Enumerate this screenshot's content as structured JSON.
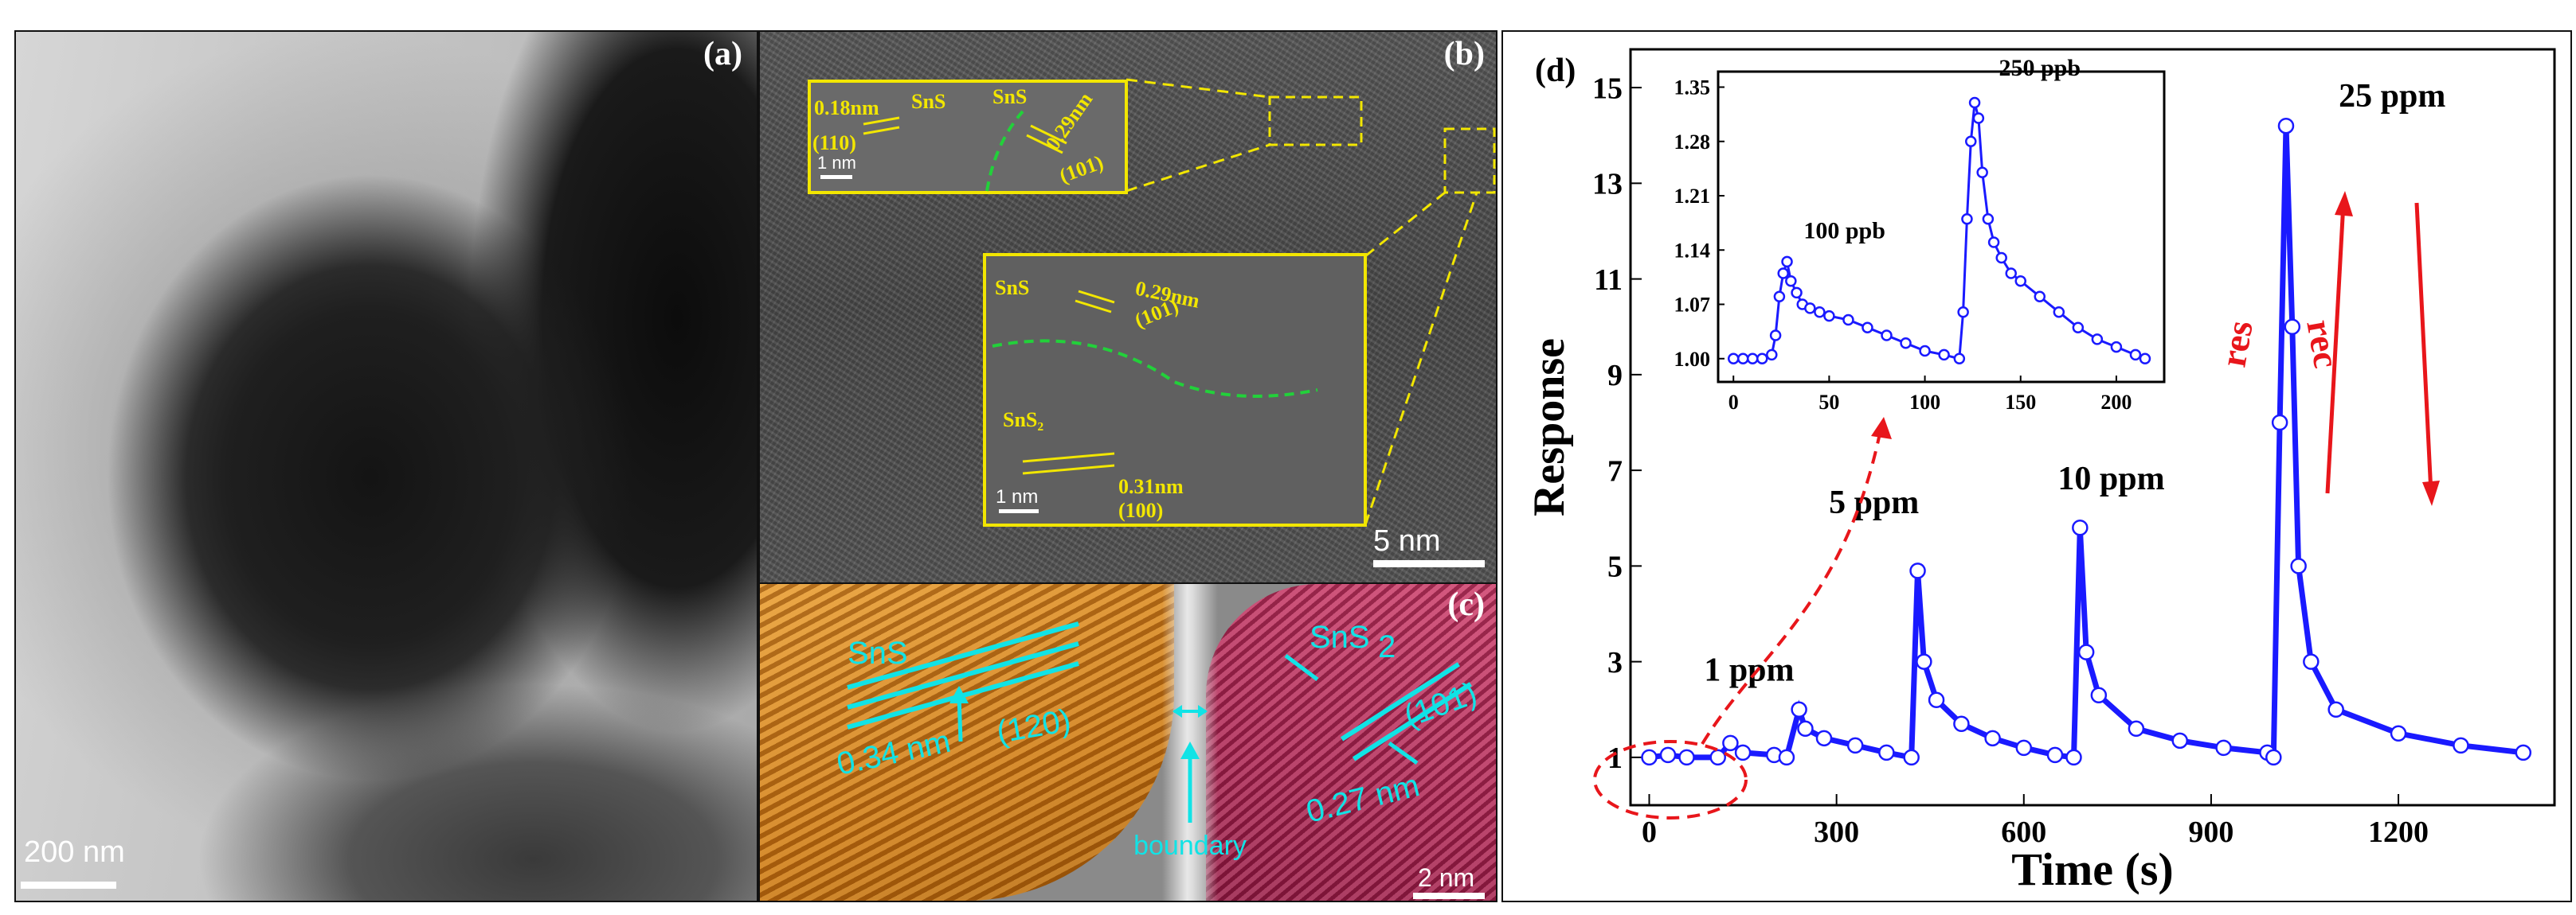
{
  "panel_a": {
    "label": "(a)",
    "scale": "200 nm"
  },
  "panel_b": {
    "label": "(b)",
    "scale": "5 nm",
    "inset1": {
      "d1": "0.18nm",
      "phase1": "SnS",
      "phase2": "SnS",
      "plane1": "(110)",
      "d2": "0.29nm",
      "plane2": "(101)",
      "scale": "1 nm"
    },
    "inset2": {
      "phase1": "SnS",
      "d1": "0.29nm",
      "plane1": "(101)",
      "phase2": "SnS₂",
      "d2": "0.31nm",
      "plane2": "(100)",
      "scale": "1 nm"
    }
  },
  "panel_c": {
    "label": "(c)",
    "scale": "2 nm",
    "left_phase": "SnS",
    "left_plane": "(120)",
    "left_d": "0.34 nm",
    "right_phase": "SnS",
    "right_sub": "2",
    "right_plane": "(101)",
    "right_d": "0.27 nm",
    "boundary": "boundary"
  },
  "colors": {
    "inset_yellow": "#f2e600",
    "cyan": "#11e3e6",
    "series_blue": "#1a1aff",
    "annot_red": "#e8161b"
  },
  "chart_data": [
    {
      "type": "line",
      "panel": "(d)",
      "xlabel": "Time (s)",
      "ylabel": "Response",
      "xlim": [
        -30,
        1450
      ],
      "ylim": [
        0,
        15.8
      ],
      "xticks": [
        0,
        300,
        600,
        900,
        1200
      ],
      "yticks": [
        1,
        3,
        5,
        7,
        9,
        11,
        13,
        15
      ],
      "series": [
        {
          "name": "response",
          "x": [
            0,
            30,
            60,
            110,
            130,
            150,
            200,
            220,
            240,
            250,
            280,
            330,
            380,
            420,
            430,
            440,
            460,
            500,
            550,
            600,
            650,
            680,
            690,
            700,
            720,
            780,
            850,
            920,
            990,
            1000,
            1010,
            1020,
            1030,
            1040,
            1060,
            1100,
            1200,
            1300,
            1400
          ],
          "y": [
            1.0,
            1.05,
            1.0,
            1.0,
            1.3,
            1.1,
            1.05,
            1.0,
            2.0,
            1.6,
            1.4,
            1.25,
            1.1,
            1.0,
            4.9,
            3.0,
            2.2,
            1.7,
            1.4,
            1.2,
            1.05,
            1.0,
            5.8,
            3.2,
            2.3,
            1.6,
            1.35,
            1.2,
            1.1,
            1.0,
            8.0,
            14.2,
            10.0,
            5.0,
            3.0,
            2.0,
            1.5,
            1.25,
            1.1
          ]
        }
      ],
      "annotations": [
        {
          "text": "1 ppm",
          "x": 160,
          "y": 2.6
        },
        {
          "text": "5 ppm",
          "x": 360,
          "y": 6.1
        },
        {
          "text": "10 ppm",
          "x": 740,
          "y": 6.6
        },
        {
          "text": "25 ppm",
          "x": 1190,
          "y": 14.6
        },
        {
          "text": "res",
          "x": 960,
          "y": 9.6
        },
        {
          "text": "rec",
          "x": 1060,
          "y": 9.6
        }
      ]
    },
    {
      "type": "line",
      "panel": "inset",
      "xlim": [
        -8,
        225
      ],
      "ylim": [
        0.97,
        1.37
      ],
      "xticks": [
        0,
        50,
        100,
        150,
        200
      ],
      "yticks": [
        1.0,
        1.07,
        1.14,
        1.21,
        1.28,
        1.35
      ],
      "series": [
        {
          "name": "response",
          "x": [
            0,
            5,
            10,
            15,
            20,
            22,
            24,
            26,
            28,
            30,
            33,
            36,
            40,
            45,
            50,
            60,
            70,
            80,
            90,
            100,
            110,
            118,
            120,
            122,
            124,
            126,
            128,
            130,
            133,
            136,
            140,
            145,
            150,
            160,
            170,
            180,
            190,
            200,
            210,
            215
          ],
          "y": [
            1.0,
            1.0,
            1.0,
            1.0,
            1.005,
            1.03,
            1.08,
            1.11,
            1.125,
            1.1,
            1.085,
            1.07,
            1.065,
            1.06,
            1.055,
            1.05,
            1.04,
            1.03,
            1.02,
            1.01,
            1.005,
            1.0,
            1.06,
            1.18,
            1.28,
            1.33,
            1.31,
            1.24,
            1.18,
            1.15,
            1.13,
            1.11,
            1.1,
            1.08,
            1.06,
            1.04,
            1.025,
            1.015,
            1.005,
            1.0
          ]
        }
      ],
      "annotations": [
        {
          "text": "100 ppb",
          "x": 58,
          "y": 1.155
        },
        {
          "text": "250 ppb",
          "x": 160,
          "y": 1.365
        }
      ]
    }
  ]
}
